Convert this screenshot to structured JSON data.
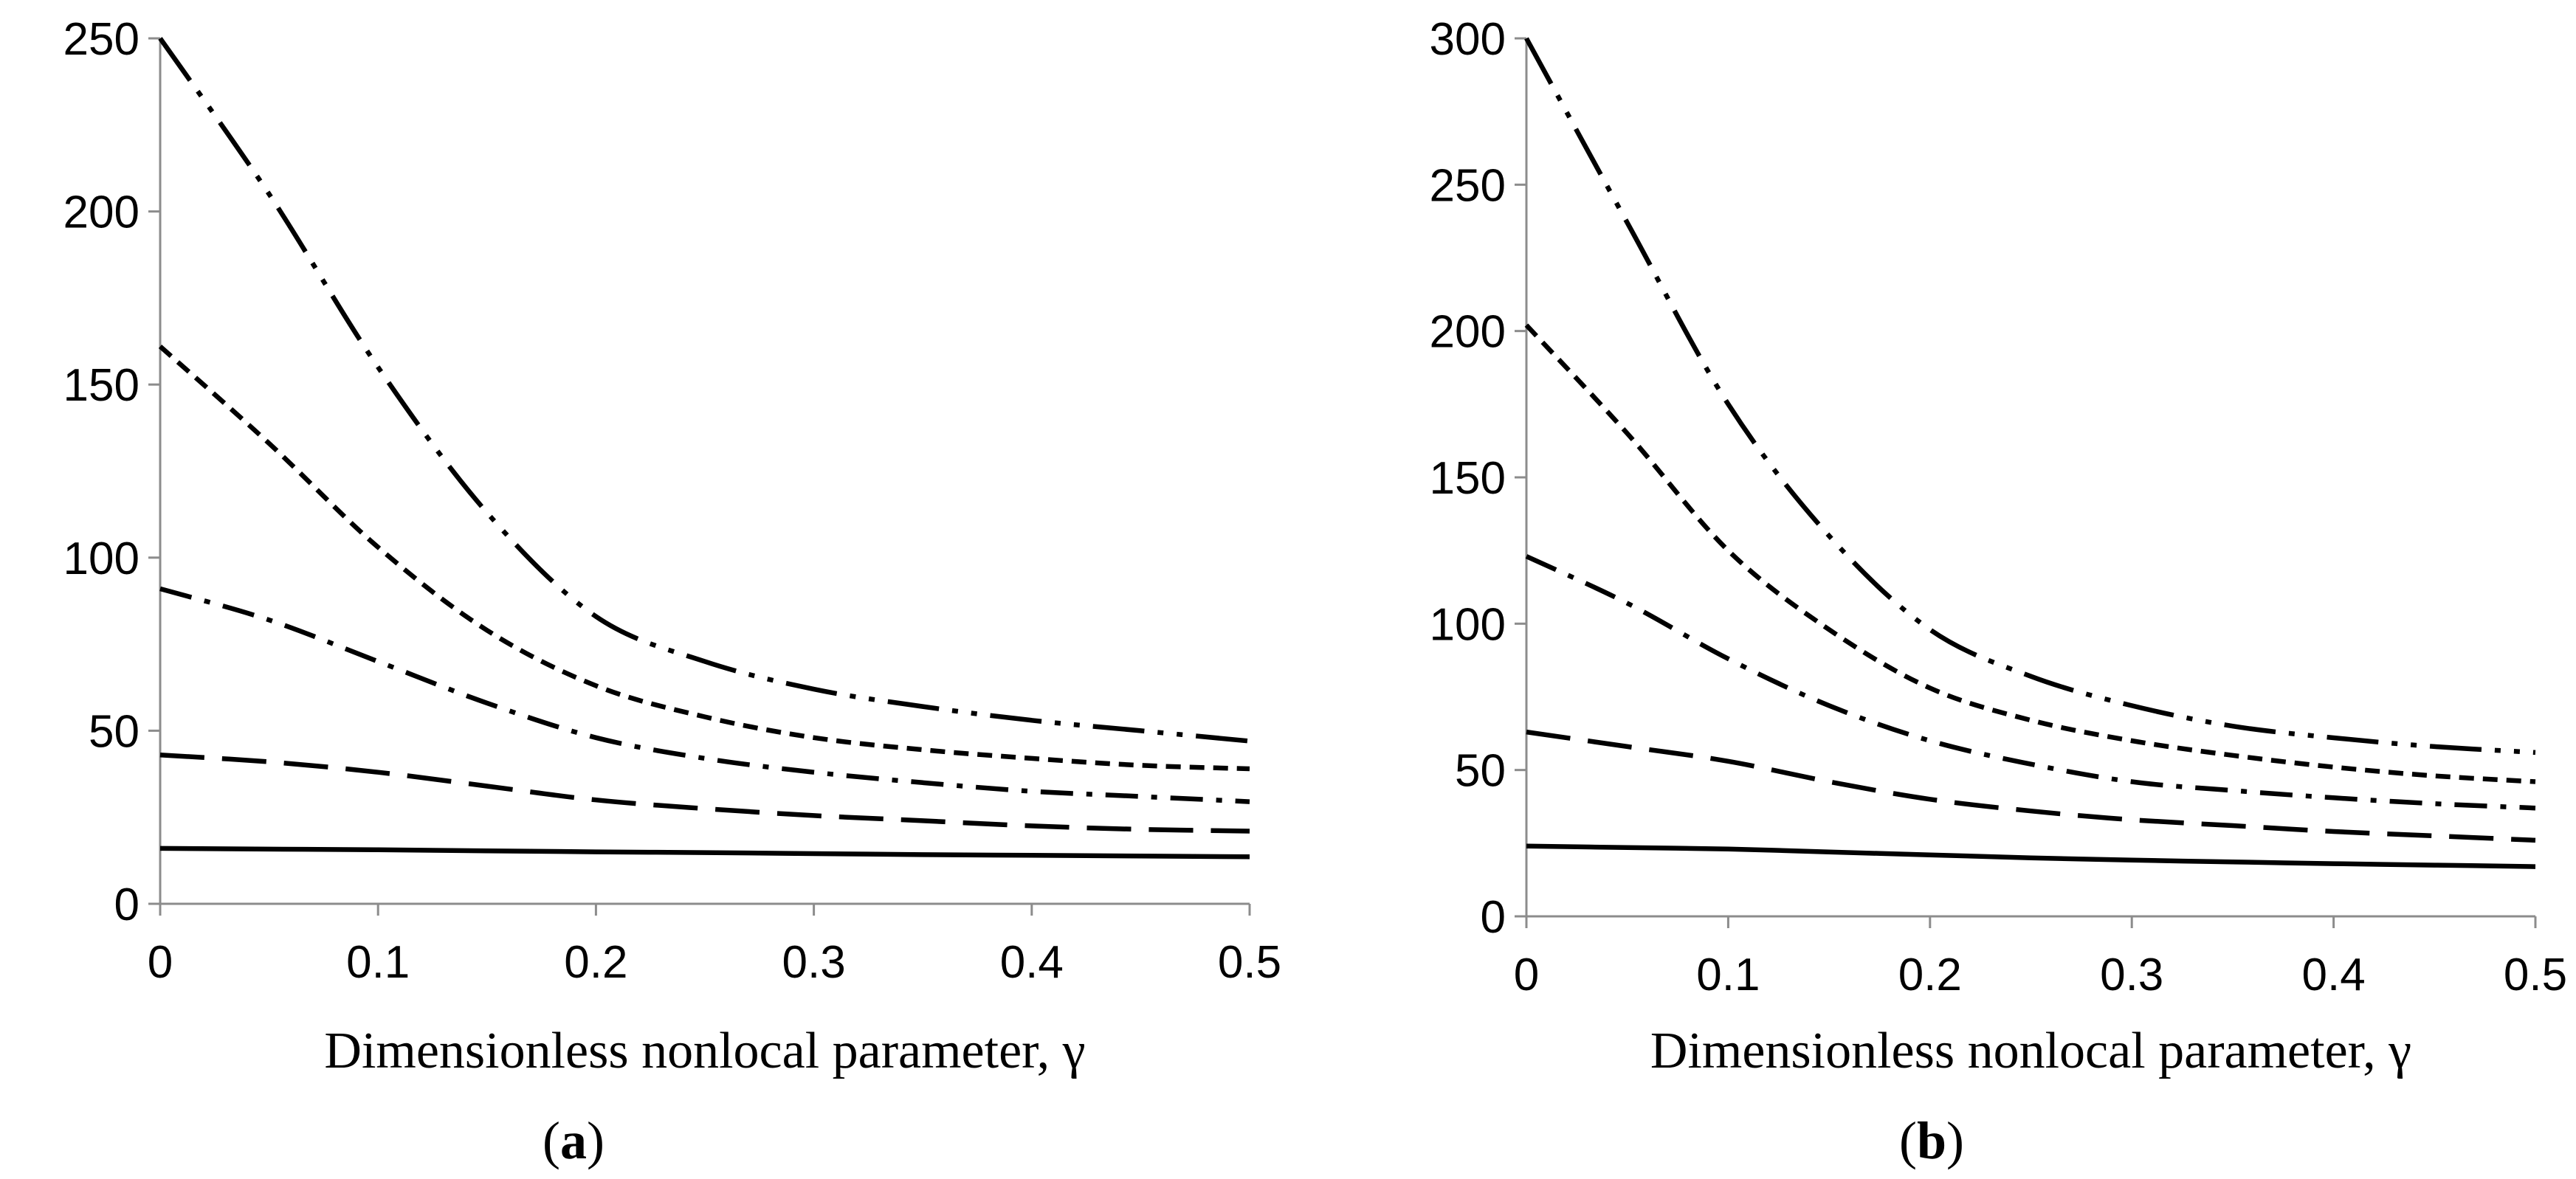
{
  "chart_data": [
    {
      "type": "line",
      "panel_label": "a",
      "xlabel": "Dimensionless nonlocal parameter, γ",
      "ylabel": "",
      "xlim": [
        0,
        0.5
      ],
      "ylim": [
        0,
        250
      ],
      "x_ticks": [
        "0",
        "0.1",
        "0.2",
        "0.3",
        "0.4",
        "0.5"
      ],
      "y_ticks": [
        "0",
        "50",
        "100",
        "150",
        "200",
        "250"
      ],
      "x": [
        0,
        0.05,
        0.1,
        0.15,
        0.2,
        0.25,
        0.3,
        0.35,
        0.4,
        0.45,
        0.5
      ],
      "series": [
        {
          "style": "solid",
          "values": [
            16,
            15.8,
            15.6,
            15.3,
            15,
            14.8,
            14.5,
            14.2,
            14,
            13.8,
            13.6
          ]
        },
        {
          "style": "long-dash",
          "values": [
            43,
            41,
            38,
            34,
            30,
            27.5,
            25.5,
            24,
            22.5,
            21.5,
            21
          ]
        },
        {
          "style": "dash-dot",
          "values": [
            91,
            82,
            70,
            58,
            48,
            42,
            38,
            35,
            32.5,
            31,
            29.5
          ]
        },
        {
          "style": "short-dash",
          "values": [
            161,
            133,
            103,
            79,
            63,
            54,
            48,
            44.5,
            42,
            40,
            39
          ]
        },
        {
          "style": "dash-dot-dot",
          "values": [
            250,
            205,
            155,
            113,
            83,
            70,
            62,
            57,
            53,
            50,
            47
          ]
        }
      ]
    },
    {
      "type": "line",
      "panel_label": "b",
      "xlabel": "Dimensionless nonlocal parameter, γ",
      "ylabel": "",
      "xlim": [
        0,
        0.5
      ],
      "ylim": [
        0,
        300
      ],
      "x_ticks": [
        "0",
        "0.1",
        "0.2",
        "0.3",
        "0.4",
        "0.5"
      ],
      "y_ticks": [
        "0",
        "50",
        "100",
        "150",
        "200",
        "250",
        "300"
      ],
      "x": [
        0,
        0.05,
        0.1,
        0.15,
        0.2,
        0.25,
        0.3,
        0.35,
        0.4,
        0.45,
        0.5
      ],
      "series": [
        {
          "style": "solid",
          "values": [
            24,
            23.5,
            23,
            22,
            21,
            20,
            19.2,
            18.6,
            18,
            17.5,
            17
          ]
        },
        {
          "style": "long-dash",
          "values": [
            63,
            58,
            53,
            46,
            40,
            36,
            33,
            31,
            29,
            27.5,
            26
          ]
        },
        {
          "style": "dash-dot",
          "values": [
            123,
            107,
            88,
            72,
            60,
            52,
            46,
            43,
            40.5,
            38.5,
            37
          ]
        },
        {
          "style": "short-dash",
          "values": [
            202,
            165,
            125,
            98,
            78,
            67,
            60,
            55,
            51,
            48,
            46
          ]
        },
        {
          "style": "dash-dot-dot",
          "values": [
            300,
            237,
            175,
            130,
            98,
            82,
            72,
            65,
            61,
            58,
            56
          ]
        }
      ]
    }
  ]
}
